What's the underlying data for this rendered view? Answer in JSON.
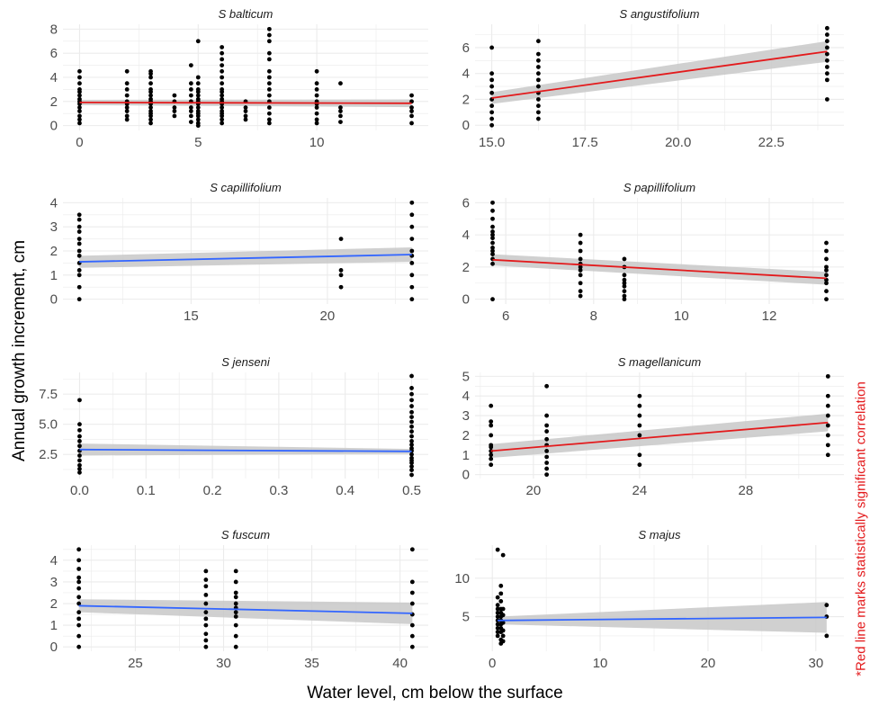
{
  "figure": {
    "ylabel": "Annual growth increment, cm",
    "xlabel": "Water level, cm below the surface",
    "note": "*Red line marks statistically significant correlation"
  },
  "colors": {
    "significant_fit": "#e31a1c",
    "nonsignificant_fit": "#3366ff",
    "confidence_band": "#c8c8c8",
    "points": "#000000",
    "grid": "#ebebeb",
    "tick_text": "#4d4d4d"
  },
  "chart_data": [
    {
      "type": "scatter",
      "title": "S balticum",
      "xlim": [
        -0.7,
        14.7
      ],
      "ylim": [
        -0.4,
        8.4
      ],
      "xticks": [
        0,
        5,
        10
      ],
      "yticks": [
        0,
        2,
        4,
        6,
        8
      ],
      "points": [
        {
          "x": 0,
          "y": [
            0.2,
            0.5,
            0.8,
            1.2,
            1.5,
            1.8,
            2.0,
            2.2,
            2.5,
            2.8,
            3.0,
            3.5,
            4.0,
            4.5
          ]
        },
        {
          "x": 2,
          "y": [
            0.5,
            0.8,
            1.2,
            1.5,
            1.8,
            2.0,
            2.5,
            3.0,
            3.5,
            4.5
          ]
        },
        {
          "x": 3,
          "y": [
            0.2,
            0.5,
            0.8,
            1.0,
            1.2,
            1.5,
            1.8,
            2.0,
            2.2,
            2.5,
            2.8,
            3.0,
            3.5,
            4.0,
            4.3,
            4.5
          ]
        },
        {
          "x": 4,
          "y": [
            0.8,
            1.2,
            1.5,
            2.0,
            2.5
          ]
        },
        {
          "x": 4.7,
          "y": [
            0.3,
            0.8,
            1.2,
            1.5,
            2.0,
            2.5,
            3.0,
            3.5,
            5.0
          ]
        },
        {
          "x": 5,
          "y": [
            0,
            0.2,
            0.5,
            0.8,
            1.0,
            1.2,
            1.5,
            1.8,
            2.0,
            2.2,
            2.5,
            2.8,
            3.0,
            3.5,
            4.0,
            7.0
          ]
        },
        {
          "x": 6,
          "y": [
            0.2,
            0.5,
            0.8,
            1.0,
            1.2,
            1.5,
            1.8,
            2.0,
            2.2,
            2.5,
            2.8,
            3.0,
            3.5,
            4.0,
            4.5,
            5.0,
            5.5,
            6.0,
            6.5
          ]
        },
        {
          "x": 7,
          "y": [
            0.5,
            0.8,
            1.2,
            1.5,
            2.0
          ]
        },
        {
          "x": 8,
          "y": [
            0.2,
            0.5,
            1.0,
            1.5,
            2.0,
            2.5,
            3.0,
            3.5,
            4.0,
            4.5,
            5.5,
            6.0,
            7.0,
            7.5,
            8.0
          ]
        },
        {
          "x": 10,
          "y": [
            0.2,
            0.5,
            1.0,
            1.5,
            1.8,
            2.0,
            2.5,
            3.0,
            3.5,
            4.5
          ]
        },
        {
          "x": 11,
          "y": [
            0.3,
            0.8,
            1.2,
            1.5,
            3.5
          ]
        },
        {
          "x": 14,
          "y": [
            0.2,
            0.8,
            1.2,
            1.5,
            2.0,
            2.5
          ]
        }
      ],
      "fit": {
        "x": [
          0,
          14
        ],
        "y": [
          1.92,
          1.85
        ],
        "ci": [
          0.22,
          0.32
        ],
        "significant": true
      }
    },
    {
      "type": "scatter",
      "title": "S angustifolium",
      "xlim": [
        14.55,
        24.45
      ],
      "ylim": [
        -0.4,
        7.8
      ],
      "xticks": [
        15.0,
        17.5,
        20.0,
        22.5
      ],
      "yticks": [
        0,
        2,
        4,
        6
      ],
      "points": [
        {
          "x": 15,
          "y": [
            0,
            0.5,
            1.0,
            1.5,
            2.0,
            2.5,
            3.0,
            3.5,
            4.0,
            6.0
          ]
        },
        {
          "x": 16.25,
          "y": [
            0.5,
            1.0,
            1.5,
            2.0,
            2.5,
            3.0,
            3.5,
            4.0,
            4.5,
            5.0,
            5.5,
            6.5
          ]
        },
        {
          "x": 24,
          "y": [
            2.0,
            3.5,
            4.0,
            4.5,
            5.0,
            5.5,
            6.0,
            6.5,
            7.0,
            7.5
          ]
        }
      ],
      "fit": {
        "x": [
          15,
          24
        ],
        "y": [
          2.1,
          5.7
        ],
        "ci": [
          0.45,
          0.8
        ],
        "significant": true
      }
    },
    {
      "type": "scatter",
      "title": "S capillifolium",
      "xlim": [
        10.3,
        23.7
      ],
      "ylim": [
        -0.2,
        4.2
      ],
      "xticks": [
        15,
        20
      ],
      "yticks": [
        0,
        1,
        2,
        3,
        4
      ],
      "points": [
        {
          "x": 10.9,
          "y": [
            0,
            0.5,
            1.0,
            1.2,
            1.5,
            1.8,
            2.0,
            2.3,
            2.5,
            2.8,
            3.0,
            3.3,
            3.5
          ]
        },
        {
          "x": 20.5,
          "y": [
            0.5,
            1.0,
            1.2,
            2.5
          ]
        },
        {
          "x": 23.1,
          "y": [
            0,
            0.5,
            1.0,
            1.5,
            1.8,
            2.0,
            2.5,
            3.0,
            3.5,
            4.0
          ]
        }
      ],
      "fit": {
        "x": [
          10.9,
          23.1
        ],
        "y": [
          1.55,
          1.85
        ],
        "ci": [
          0.25,
          0.3
        ],
        "significant": false
      }
    },
    {
      "type": "scatter",
      "title": "S papillifolium",
      "xlim": [
        5.3,
        13.7
      ],
      "ylim": [
        -0.3,
        6.3
      ],
      "xticks": [
        6,
        8,
        10,
        12
      ],
      "yticks": [
        0,
        2,
        4,
        6
      ],
      "points": [
        {
          "x": 5.7,
          "y": [
            0,
            2.2,
            2.5,
            2.8,
            3.0,
            3.2,
            3.5,
            3.8,
            4.0,
            4.2,
            4.5,
            5.0,
            5.5,
            6.0
          ]
        },
        {
          "x": 7.7,
          "y": [
            0.2,
            0.5,
            1.0,
            1.5,
            1.8,
            2.0,
            2.2,
            2.5,
            3.0,
            3.5,
            4.0
          ]
        },
        {
          "x": 8.7,
          "y": [
            0,
            0.2,
            0.5,
            0.8,
            1.0,
            1.2,
            1.5,
            2.0,
            2.5
          ]
        },
        {
          "x": 13.3,
          "y": [
            0,
            0.5,
            1.0,
            1.2,
            1.5,
            1.8,
            2.0,
            2.5,
            3.0,
            3.5
          ]
        }
      ],
      "fit": {
        "x": [
          5.7,
          13.3
        ],
        "y": [
          2.45,
          1.3
        ],
        "ci": [
          0.35,
          0.4
        ],
        "significant": true
      }
    },
    {
      "type": "scatter",
      "title": "S jenseni",
      "xlim": [
        -0.025,
        0.525
      ],
      "ylim": [
        0.5,
        9.3
      ],
      "xticks": [
        0.0,
        0.1,
        0.2,
        0.3,
        0.4,
        0.5
      ],
      "yticks": [
        2.5,
        5.0,
        7.5
      ],
      "points": [
        {
          "x": 0,
          "y": [
            1.0,
            1.3,
            1.6,
            2.0,
            2.4,
            2.8,
            3.2,
            3.6,
            4.0,
            4.5,
            5.0,
            7.0
          ]
        },
        {
          "x": 0.5,
          "y": [
            0.8,
            1.2,
            1.5,
            1.8,
            2.0,
            2.2,
            2.5,
            2.8,
            3.0,
            3.3,
            3.6,
            4.0,
            4.4,
            4.8,
            5.2,
            5.6,
            6.0,
            6.5,
            7.0,
            7.5,
            8.0,
            9.0
          ]
        }
      ],
      "fit": {
        "x": [
          0,
          0.5
        ],
        "y": [
          2.9,
          2.75
        ],
        "ci": [
          0.5,
          0.2
        ],
        "significant": false
      }
    },
    {
      "type": "scatter",
      "title": "S magellanicum",
      "xlim": [
        17.8,
        31.7
      ],
      "ylim": [
        -0.2,
        5.2
      ],
      "xticks": [
        20,
        24,
        28
      ],
      "yticks": [
        0,
        1,
        2,
        3,
        4,
        5
      ],
      "points": [
        {
          "x": 18.4,
          "y": [
            0.5,
            0.8,
            1.0,
            1.2,
            1.4,
            1.5,
            2.0,
            2.5,
            2.7,
            3.5
          ]
        },
        {
          "x": 20.5,
          "y": [
            0,
            0.3,
            0.6,
            0.9,
            1.2,
            1.5,
            1.8,
            2.2,
            2.5,
            3.0,
            4.5
          ]
        },
        {
          "x": 24,
          "y": [
            0.5,
            1.0,
            2.0,
            2.5,
            3.0,
            3.5,
            4.0
          ]
        },
        {
          "x": 31.1,
          "y": [
            1.0,
            1.5,
            2.0,
            2.5,
            3.0,
            3.5,
            4.0,
            5.0
          ]
        }
      ],
      "fit": {
        "x": [
          18.4,
          31.1
        ],
        "y": [
          1.2,
          2.65
        ],
        "ci": [
          0.35,
          0.45
        ],
        "significant": true
      }
    },
    {
      "type": "scatter",
      "title": "S fuscum",
      "xlim": [
        20.9,
        41.6
      ],
      "ylim": [
        -0.2,
        4.7
      ],
      "xticks": [
        25,
        30,
        35,
        40
      ],
      "yticks": [
        0,
        1,
        2,
        3,
        4
      ],
      "points": [
        {
          "x": 21.8,
          "y": [
            0,
            0.5,
            1.0,
            1.3,
            1.6,
            2.0,
            2.3,
            2.7,
            3.0,
            3.2,
            3.6,
            4.0,
            4.5
          ]
        },
        {
          "x": 29,
          "y": [
            0,
            0.3,
            0.6,
            1.0,
            1.3,
            1.6,
            2.0,
            2.4,
            2.8,
            3.1,
            3.5
          ]
        },
        {
          "x": 30.7,
          "y": [
            0,
            0.5,
            1.0,
            1.4,
            1.6,
            1.8,
            2.0,
            2.3,
            2.5,
            3.0,
            3.5
          ]
        },
        {
          "x": 40.7,
          "y": [
            0,
            0.5,
            1.0,
            1.5,
            2.0,
            2.5,
            3.0,
            4.5
          ]
        }
      ],
      "fit": {
        "x": [
          21.8,
          40.7
        ],
        "y": [
          1.9,
          1.55
        ],
        "ci": [
          0.3,
          0.5
        ],
        "significant": false
      }
    },
    {
      "type": "scatter",
      "title": "S majus",
      "xlim": [
        -1.6,
        32.6
      ],
      "ylim": [
        0.5,
        14.3
      ],
      "xticks": [
        0,
        10,
        20,
        30
      ],
      "yticks": [
        5,
        10
      ],
      "points": [
        {
          "x": 0.5,
          "y": [
            2.5,
            3.0,
            3.5,
            4.0,
            4.5,
            5.0,
            5.5,
            6.0,
            6.5,
            7.5,
            13.7
          ]
        },
        {
          "x": 0.8,
          "y": [
            1.5,
            2.0,
            3.0,
            3.5,
            4.0,
            4.5,
            5.0,
            5.5,
            6.0,
            7.0,
            8.0,
            9.0
          ]
        },
        {
          "x": 1.0,
          "y": [
            1.8,
            2.5,
            3.2,
            4.2,
            5.2,
            6.0,
            13.0
          ]
        },
        {
          "x": 31,
          "y": [
            2.5,
            5.0,
            6.5
          ]
        }
      ],
      "fit": {
        "x": [
          0.5,
          31
        ],
        "y": [
          4.5,
          4.9
        ],
        "ci": [
          0.5,
          2.0
        ],
        "significant": false
      }
    }
  ]
}
